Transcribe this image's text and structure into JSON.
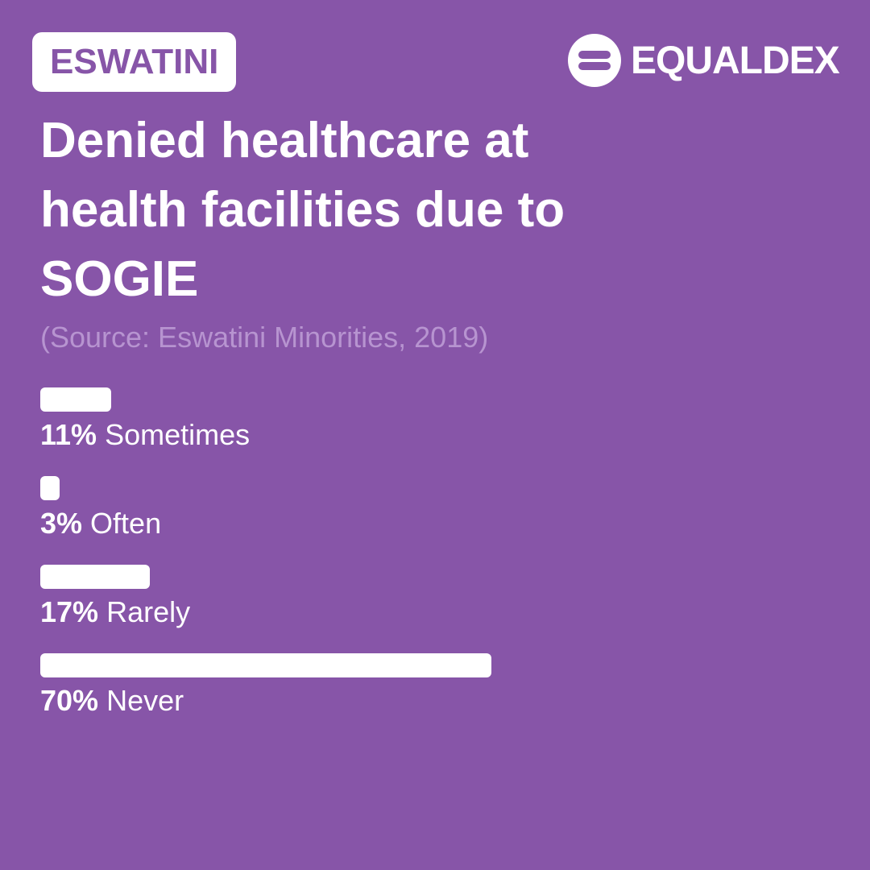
{
  "badge": "ESWATINI",
  "brand": "EQUALDEX",
  "chart_data": {
    "type": "bar",
    "title": "Denied healthcare at health facilities due to SOGIE",
    "subtitle": "(Source: Eswatini Minorities, 2019)",
    "categories": [
      "Sometimes",
      "Often",
      "Rarely",
      "Never"
    ],
    "values": [
      11,
      3,
      17,
      70
    ],
    "value_labels": [
      "11%",
      "3%",
      "17%",
      "70%"
    ],
    "color": "#ffffff",
    "xlim": [
      0,
      100
    ]
  }
}
